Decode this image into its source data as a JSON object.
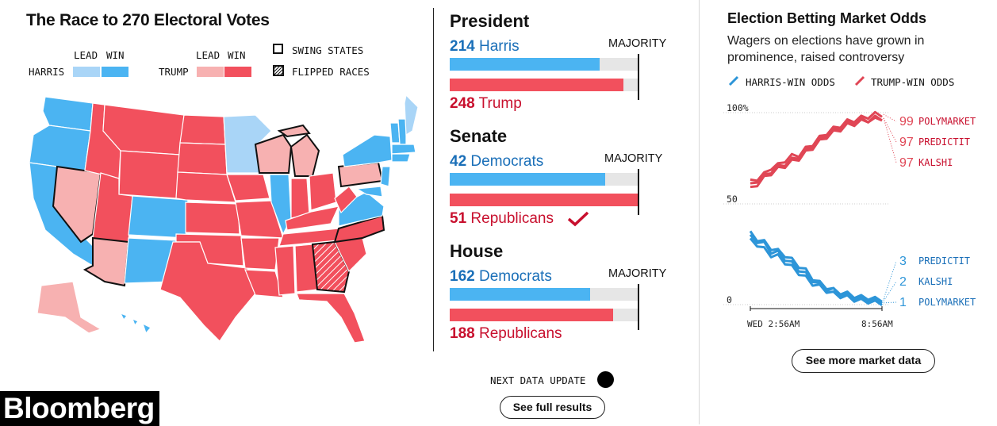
{
  "electoral": {
    "title": "The Race to 270 Electoral Votes",
    "legend": {
      "lead": "LEAD",
      "win": "WIN",
      "harris": "HARRIS",
      "trump": "TRUMP",
      "swing": "SWING STATES",
      "flipped": "FLIPPED RACES"
    },
    "colors": {
      "harris_lead": "#a9d5f7",
      "harris_win": "#4bb4f2",
      "trump_lead": "#f7b1b1",
      "trump_win": "#f2505d"
    },
    "next_update": "NEXT DATA UPDATE",
    "see_full": "See full results"
  },
  "races": {
    "president": {
      "title": "President",
      "majority": "MAJORITY",
      "dem_count": "214",
      "dem_name": "Harris",
      "rep_count": "248",
      "rep_name": "Trump",
      "dem_fraction": 0.793,
      "rep_fraction": 0.919
    },
    "senate": {
      "title": "Senate",
      "majority": "MAJORITY",
      "dem_count": "42",
      "dem_name": "Democrats",
      "rep_count": "51",
      "rep_name": "Republicans",
      "dem_fraction": 0.824,
      "rep_fraction": 1.0,
      "rep_winner": true
    },
    "house": {
      "title": "House",
      "majority": "MAJORITY",
      "dem_count": "162",
      "dem_name": "Democrats",
      "rep_count": "188",
      "rep_name": "Republicans",
      "dem_fraction": 0.745,
      "rep_fraction": 0.864
    }
  },
  "betting": {
    "title": "Election Betting Market Odds",
    "subtitle_line1": "Wagers on elections have grown in",
    "subtitle_line2": "prominence, raised controversy",
    "legend_harris": "HARRIS-WIN ODDS",
    "legend_trump": "TRUMP-WIN ODDS",
    "see_more": "See more market data"
  },
  "chart_data": {
    "type": "line",
    "title": "",
    "ylim": [
      0,
      100
    ],
    "y_ticks": [
      "100%",
      "50",
      "0"
    ],
    "x_ticks": [
      "WED 2:56AM",
      "8:56AM"
    ],
    "colors": {
      "harris": "#2d95d8",
      "trump": "#e04655"
    },
    "series": [
      {
        "name": "POLYMARKET",
        "party": "trump",
        "end_value": 99,
        "end_label": "99"
      },
      {
        "name": "PREDICTIT",
        "party": "trump",
        "end_value": 97,
        "end_label": "97"
      },
      {
        "name": "KALSHI",
        "party": "trump",
        "end_value": 97,
        "end_label": "97"
      },
      {
        "name": "PREDICTIT",
        "party": "harris",
        "end_value": 3,
        "end_label": "3"
      },
      {
        "name": "KALSHI",
        "party": "harris",
        "end_value": 2,
        "end_label": "2"
      },
      {
        "name": "POLYMARKET",
        "party": "harris",
        "end_value": 1,
        "end_label": "1"
      }
    ],
    "values_trump": [
      [
        62,
        64,
        66,
        70,
        71,
        74,
        76,
        77,
        80,
        83,
        86,
        89,
        91,
        93,
        95,
        96,
        97,
        98,
        99,
        99
      ],
      [
        60,
        63,
        65,
        68,
        70,
        72,
        74,
        76,
        79,
        82,
        85,
        88,
        90,
        92,
        94,
        95,
        96,
        96,
        97,
        97
      ],
      [
        58,
        61,
        64,
        67,
        69,
        71,
        73,
        75,
        78,
        81,
        84,
        87,
        89,
        91,
        93,
        94,
        95,
        96,
        96,
        97
      ]
    ],
    "values_harris": [
      [
        38,
        36,
        34,
        30,
        29,
        26,
        23,
        20,
        17,
        14,
        11,
        9,
        8,
        7,
        6,
        5,
        4,
        4,
        3,
        3
      ],
      [
        40,
        37,
        35,
        32,
        30,
        28,
        25,
        22,
        19,
        15,
        12,
        10,
        8,
        6,
        5,
        4,
        3,
        3,
        2,
        2
      ],
      [
        36,
        34,
        31,
        28,
        27,
        24,
        21,
        18,
        15,
        12,
        10,
        8,
        6,
        5,
        4,
        3,
        2,
        2,
        1,
        1
      ]
    ]
  },
  "brand": {
    "logo": "Bloomberg"
  }
}
